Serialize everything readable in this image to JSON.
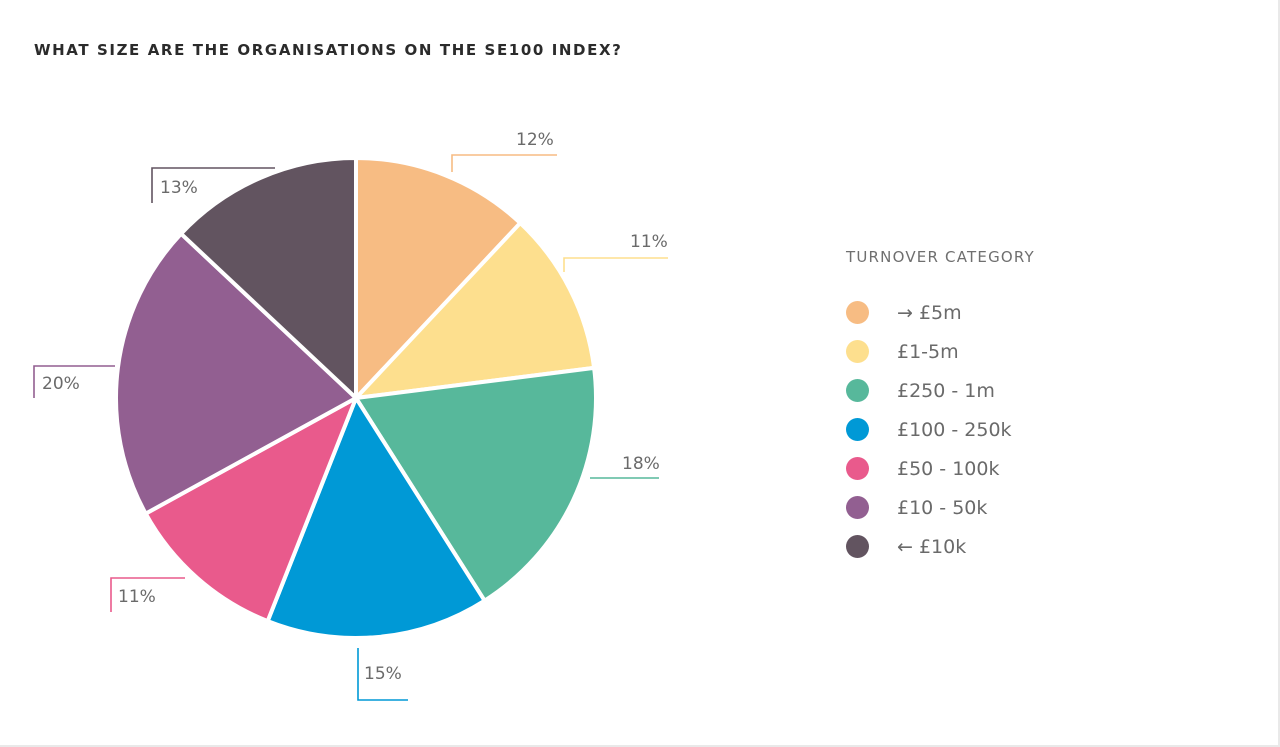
{
  "title": "WHAT SIZE ARE THE ORGANISATIONS ON THE SE100 INDEX?",
  "chart_data": {
    "type": "pie",
    "title": "WHAT SIZE ARE THE ORGANISATIONS ON THE SE100 INDEX?",
    "legend_title": "TURNOVER CATEGORY",
    "legend_position": "right",
    "start_angle": "top",
    "direction": "clockwise",
    "slices": [
      {
        "category": "→ £5m",
        "value": 12,
        "label": "12%",
        "color": "#F7BC83"
      },
      {
        "category": "£1-5m",
        "value": 11,
        "label": "11%",
        "color": "#FDDF8E"
      },
      {
        "category": "£250 - 1m",
        "value": 18,
        "label": "18%",
        "color": "#57B89B"
      },
      {
        "category": "£100 - 250k",
        "value": 15,
        "label": "15%",
        "color": "#0099D6"
      },
      {
        "category": "£50 - 100k",
        "value": 11,
        "label": "11%",
        "color": "#E95A8C"
      },
      {
        "category": "£10 - 50k",
        "value": 20,
        "label": "20%",
        "color": "#925F91"
      },
      {
        "category": "← £10k",
        "value": 13,
        "label": "13%",
        "color": "#625460"
      }
    ]
  }
}
